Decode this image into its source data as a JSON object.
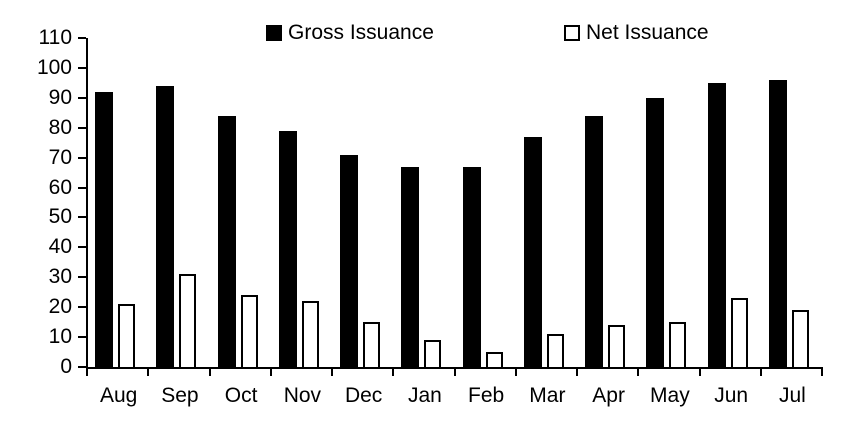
{
  "chart_data": {
    "type": "bar",
    "title": "",
    "categories": [
      "Aug",
      "Sep",
      "Oct",
      "Nov",
      "Dec",
      "Jan",
      "Feb",
      "Mar",
      "Apr",
      "May",
      "Jun",
      "Jul"
    ],
    "series": [
      {
        "name": "Gross Issuance",
        "swatch": "black-filled-square",
        "fill": "#000000",
        "values": [
          92,
          94,
          84,
          79,
          71,
          67,
          67,
          77,
          84,
          90,
          95,
          96
        ]
      },
      {
        "name": "Net Issuance",
        "swatch": "white-outlined-square",
        "fill": "#ffffff",
        "stroke": "#000000",
        "values": [
          21,
          31,
          24,
          22,
          15,
          9,
          5,
          11,
          14,
          15,
          23,
          19
        ]
      }
    ],
    "ylim": [
      0,
      110
    ],
    "yticks": [
      110,
      100,
      90,
      80,
      70,
      60,
      50,
      40,
      30,
      20,
      10,
      0
    ],
    "grid": false,
    "legend_position": "top",
    "axis_color": "#000000",
    "background": "#ffffff"
  }
}
